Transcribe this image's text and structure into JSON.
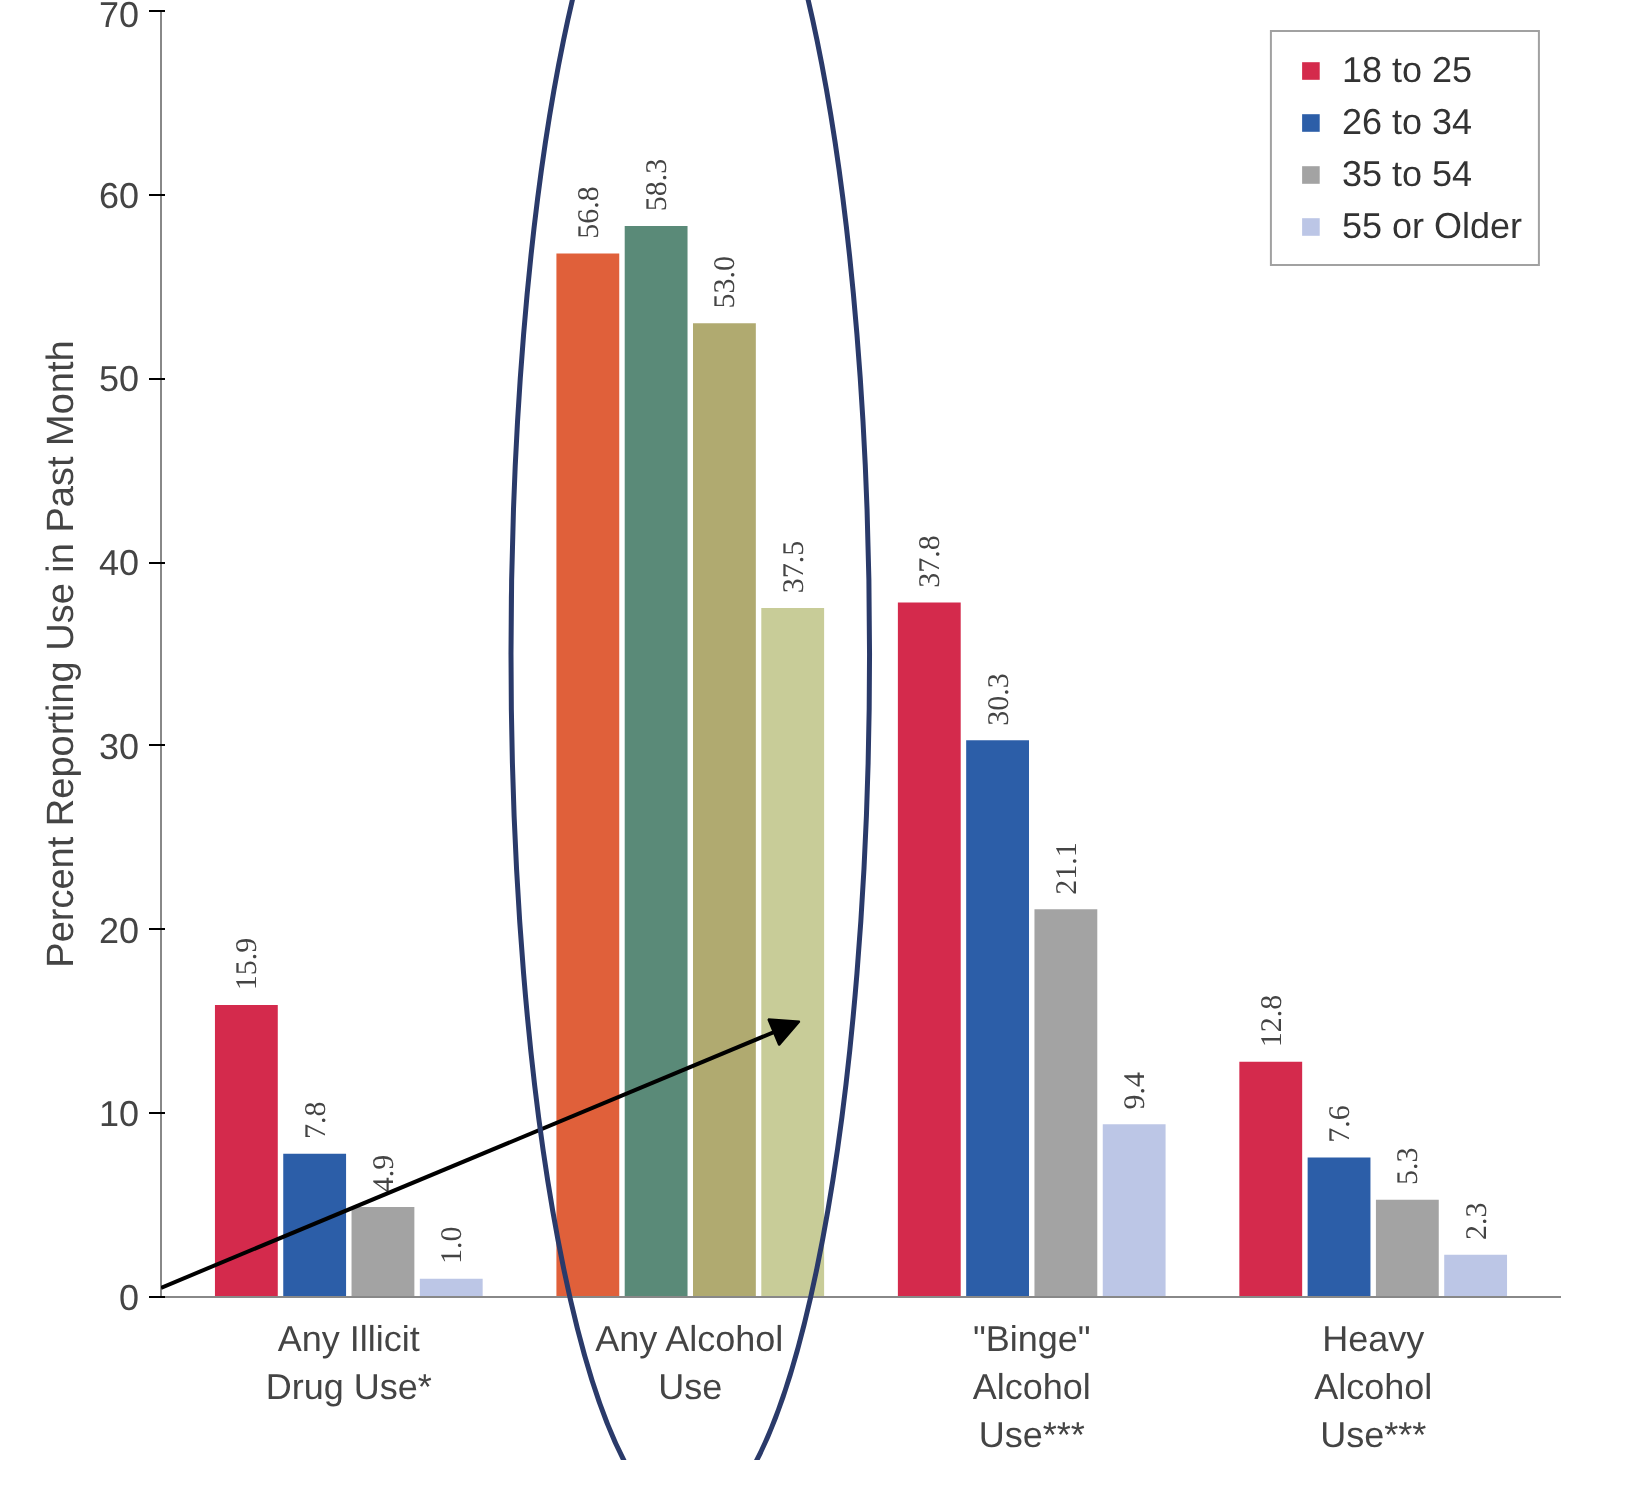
{
  "chart_data": {
    "type": "bar",
    "ylabel": "Percent Reporting Use in Past Month",
    "categories": [
      "Any Illicit Drug Use*",
      "Any Alcohol Use",
      "\"Binge\" Alcohol Use***",
      "Heavy Alcohol Use***"
    ],
    "series": [
      {
        "name": "18 to 25",
        "color": "#d42a4c",
        "colors": [
          "#d42a4c",
          "#e0603a",
          "#d42a4c",
          "#d42a4c"
        ],
        "values": [
          15.9,
          56.8,
          37.8,
          12.8
        ],
        "value_labels": [
          "15.9",
          "56.8",
          "37.8",
          "12.8"
        ]
      },
      {
        "name": "26 to 34",
        "color": "#2c5ea8",
        "colors": [
          "#2c5ea8",
          "#5a8a78",
          "#2c5ea8",
          "#2c5ea8"
        ],
        "values": [
          7.8,
          58.3,
          30.3,
          7.6
        ],
        "value_labels": [
          "7.8",
          "58.3",
          "30.3",
          "7.6"
        ]
      },
      {
        "name": "35 to 54",
        "color": "#a3a3a3",
        "colors": [
          "#a3a3a3",
          "#b0aa70",
          "#a3a3a3",
          "#a3a3a3"
        ],
        "values": [
          4.9,
          53.0,
          21.1,
          5.3
        ],
        "value_labels": [
          "4.9",
          "53.0",
          "21.1",
          "5.3"
        ]
      },
      {
        "name": "55 or Older",
        "color": "#bcc6e6",
        "colors": [
          "#bcc6e6",
          "#c8cc98",
          "#bcc6e6",
          "#bcc6e6"
        ],
        "values": [
          1.0,
          37.5,
          9.4,
          2.3
        ],
        "value_labels": [
          "1.0",
          "37.5",
          "9.4",
          "2.3"
        ]
      }
    ],
    "ylim": [
      0,
      70
    ],
    "yticks": [
      0,
      10,
      20,
      30,
      40,
      50,
      60,
      70
    ],
    "legend": "top right",
    "grid": false
  }
}
